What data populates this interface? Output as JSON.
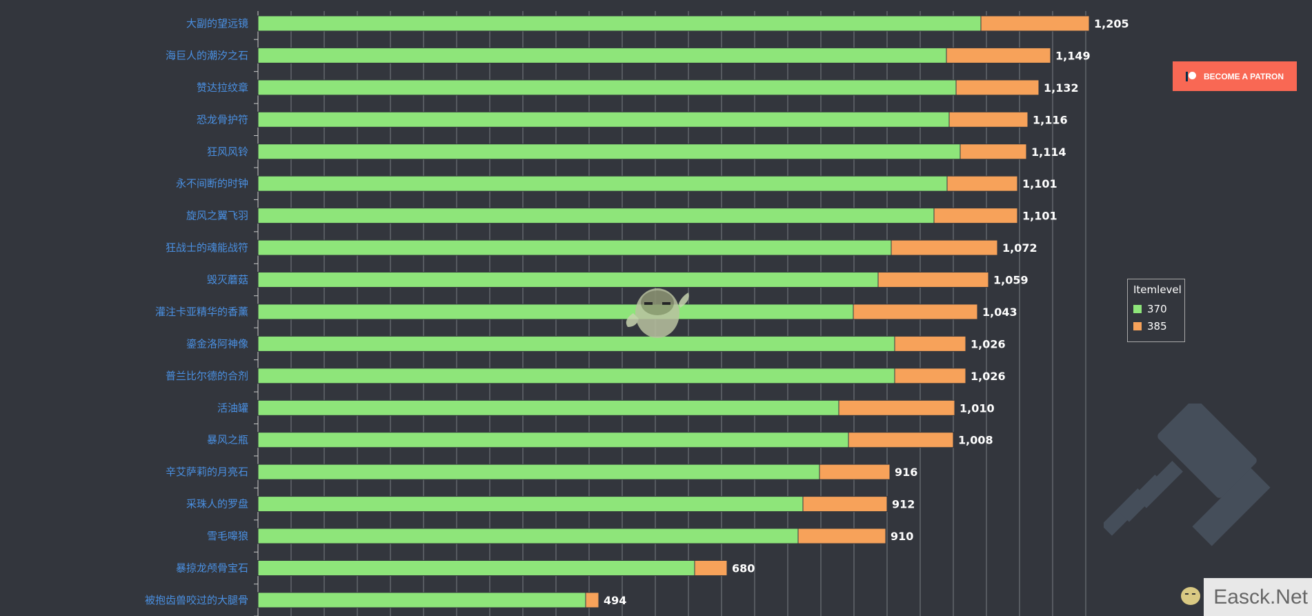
{
  "chart_data": {
    "type": "bar",
    "orientation": "horizontal",
    "stacked": true,
    "categories": [
      "大副的望远镜",
      "海巨人的潮汐之石",
      "赞达拉纹章",
      "恐龙骨护符",
      "狂风风铃",
      "永不间断的时钟",
      "旋风之翼飞羽",
      "狂战士的魂能战符",
      "毁灭蘑菇",
      "灌注卡亚精华的香薰",
      "鎏金洛阿神像",
      "普兰比尔德的合剂",
      "活油罐",
      "暴风之瓶",
      "辛艾萨莉的月亮石",
      "采珠人的罗盘",
      "雪毛嗥狼",
      "暴掠龙颅骨宝石",
      "被抱齿兽咬过的大腿骨"
    ],
    "series": [
      {
        "name": "370",
        "color": "#8ee57a",
        "values": [
          1048,
          998,
          1012,
          1002,
          1018,
          999,
          980,
          918,
          899,
          863,
          923,
          923,
          842,
          856,
          814,
          790,
          783,
          633,
          475
        ]
      },
      {
        "name": "385",
        "color": "#f7a25a",
        "values": [
          157,
          151,
          120,
          114,
          96,
          102,
          121,
          154,
          160,
          180,
          103,
          103,
          168,
          152,
          102,
          122,
          127,
          47,
          19
        ]
      }
    ],
    "totals": [
      "1,205",
      "1,149",
      "1,132",
      "1,116",
      "1,114",
      "1,101",
      "1,101",
      "1,072",
      "1,059",
      "1,043",
      "1,026",
      "1,026",
      "1,010",
      "1,008",
      "916",
      "912",
      "910",
      "680",
      "494"
    ],
    "grid": true,
    "legend": {
      "title": "Itemlevel",
      "position": "right"
    }
  },
  "patron_button": {
    "label": "BECOME A PATRON",
    "color": "#f96854"
  },
  "watermark": {
    "text": "Easck.Net"
  }
}
